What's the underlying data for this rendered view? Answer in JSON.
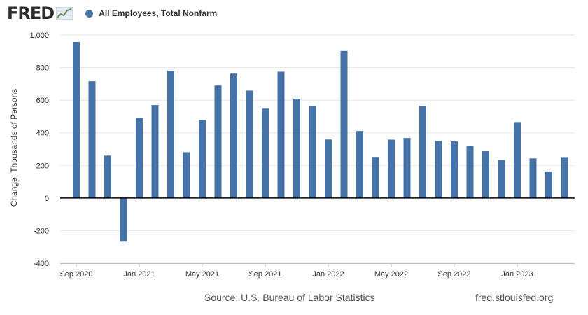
{
  "header": {
    "logo_text": "FRED",
    "series_color": "#4572a7"
  },
  "chart_data": {
    "type": "bar",
    "series": [
      {
        "name": "All Employees, Total Nonfarm",
        "color": "#4572a7",
        "values": [
          957,
          716,
          260,
          -268,
          491,
          570,
          781,
          281,
          480,
          690,
          763,
          659,
          552,
          775,
          609,
          564,
          359,
          902,
          411,
          252,
          358,
          368,
          566,
          350,
          347,
          320,
          287,
          233,
          466,
          243,
          163,
          251
        ]
      }
    ],
    "categories": [
      "2020-09",
      "2020-10",
      "2020-11",
      "2020-12",
      "2021-01",
      "2021-02",
      "2021-03",
      "2021-04",
      "2021-05",
      "2021-06",
      "2021-07",
      "2021-08",
      "2021-09",
      "2021-10",
      "2021-11",
      "2021-12",
      "2022-01",
      "2022-02",
      "2022-03",
      "2022-04",
      "2022-05",
      "2022-06",
      "2022-07",
      "2022-08",
      "2022-09",
      "2022-10",
      "2022-11",
      "2022-12",
      "2023-01",
      "2023-02",
      "2023-03",
      "2023-04"
    ],
    "x_tick_labels": [
      {
        "index": 0,
        "label": "Sep 2020"
      },
      {
        "index": 4,
        "label": "Jan 2021"
      },
      {
        "index": 8,
        "label": "May 2021"
      },
      {
        "index": 12,
        "label": "Sep 2021"
      },
      {
        "index": 16,
        "label": "Jan 2022"
      },
      {
        "index": 20,
        "label": "May 2022"
      },
      {
        "index": 24,
        "label": "Sep 2022"
      },
      {
        "index": 28,
        "label": "Jan 2023"
      }
    ],
    "y_ticks": [
      -400,
      -200,
      0,
      200,
      400,
      600,
      800,
      1000
    ],
    "y_tick_labels": [
      "-400",
      "-200",
      "0",
      "200",
      "400",
      "600",
      "800",
      "1,000"
    ],
    "ylabel": "Change, Thousands of Persons",
    "ylim": [
      -400,
      1000
    ],
    "grid": true
  },
  "footer": {
    "source": "Source: U.S. Bureau of Labor Statistics",
    "site": "fred.stlouisfed.org"
  }
}
